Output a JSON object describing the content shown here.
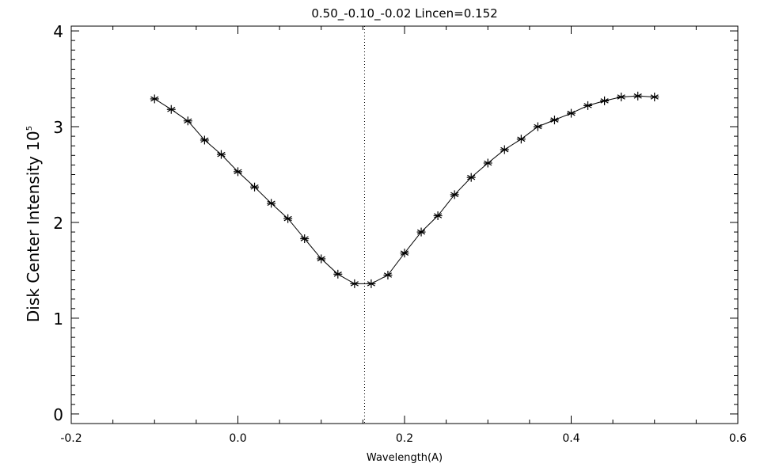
{
  "chart_data": {
    "type": "line",
    "title": "0.50_-0.10_-0.02   Lincen=0.152",
    "xlabel": "Wavelength(A)",
    "ylabel": "Disk Center Intensity 10",
    "ylabel_exponent": "5",
    "xlim": [
      -0.2,
      0.6
    ],
    "ylim": [
      -0.1,
      4.05
    ],
    "x_ticks": [
      -0.2,
      0.0,
      0.2,
      0.4,
      0.6
    ],
    "x_tick_labels": [
      "-0.2",
      "0.0",
      "0.2",
      "0.4",
      "0.6"
    ],
    "y_ticks": [
      0,
      1,
      2,
      3,
      4
    ],
    "y_tick_labels": [
      "0",
      "1",
      "2",
      "3",
      "4"
    ],
    "line_center": 0.152,
    "marker": "asterisk",
    "grid": false,
    "series": [
      {
        "x": [
          -0.1,
          -0.08,
          -0.06,
          -0.04,
          -0.02,
          0.0,
          0.02,
          0.04,
          0.06,
          0.08,
          0.1,
          0.12,
          0.14,
          0.16,
          0.18,
          0.2,
          0.22,
          0.24,
          0.26,
          0.28,
          0.3,
          0.32,
          0.34,
          0.36,
          0.38,
          0.4,
          0.42,
          0.44,
          0.46,
          0.48,
          0.5
        ],
        "y": [
          3.29,
          3.18,
          3.06,
          2.86,
          2.71,
          2.53,
          2.37,
          2.2,
          2.04,
          1.83,
          1.62,
          1.46,
          1.36,
          1.36,
          1.45,
          1.68,
          1.9,
          2.07,
          2.29,
          2.47,
          2.62,
          2.76,
          2.87,
          3.0,
          3.07,
          3.14,
          3.22,
          3.27,
          3.31,
          3.32,
          3.31
        ]
      }
    ]
  }
}
